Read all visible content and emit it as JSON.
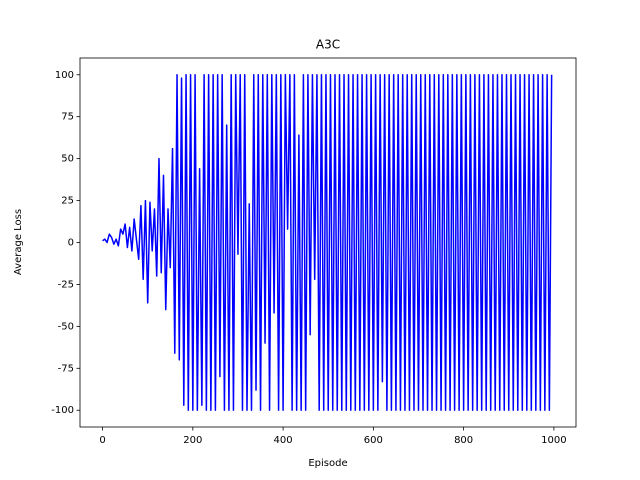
{
  "chart_data": {
    "type": "line",
    "title": "A3C",
    "x_label": "Episode",
    "y_label": "Average Loss",
    "x": [
      0,
      5,
      10,
      15,
      20,
      25,
      30,
      35,
      40,
      45,
      50,
      55,
      60,
      65,
      70,
      75,
      80,
      85,
      90,
      95,
      100,
      105,
      110,
      115,
      120,
      125,
      130,
      135,
      140,
      145,
      150,
      155,
      160,
      165,
      170,
      175,
      180,
      185,
      190,
      195,
      200,
      205,
      210,
      215,
      220,
      225,
      230,
      235,
      240,
      245,
      250,
      255,
      260,
      265,
      270,
      275,
      280,
      285,
      290,
      295,
      300,
      305,
      310,
      315,
      320,
      325,
      330,
      335,
      340,
      345,
      350,
      355,
      360,
      365,
      370,
      375,
      380,
      385,
      390,
      395,
      400,
      405,
      410,
      415,
      420,
      425,
      430,
      435,
      440,
      445,
      450,
      455,
      460,
      465,
      470,
      475,
      480,
      485,
      490,
      495,
      500,
      505,
      510,
      515,
      520,
      525,
      530,
      535,
      540,
      545,
      550,
      555,
      560,
      565,
      570,
      575,
      580,
      585,
      590,
      595,
      600,
      605,
      610,
      615,
      620,
      625,
      630,
      635,
      640,
      645,
      650,
      655,
      660,
      665,
      670,
      675,
      680,
      685,
      690,
      695,
      700,
      705,
      710,
      715,
      720,
      725,
      730,
      735,
      740,
      745,
      750,
      755,
      760,
      765,
      770,
      775,
      780,
      785,
      790,
      795,
      800,
      805,
      810,
      815,
      820,
      825,
      830,
      835,
      840,
      845,
      850,
      855,
      860,
      865,
      870,
      875,
      880,
      885,
      890,
      895,
      900,
      905,
      910,
      915,
      920,
      925,
      930,
      935,
      940,
      945,
      950,
      955,
      960,
      965,
      970,
      975,
      980,
      985,
      990,
      995
    ],
    "series": [
      {
        "name": "loss",
        "color": "#0000ff",
        "values": [
          1,
          2,
          0,
          5,
          3,
          -1,
          2,
          -2,
          8,
          5,
          11,
          -3,
          9,
          -5,
          14,
          2,
          -10,
          22,
          -22,
          25,
          -36,
          24,
          -5,
          20,
          -20,
          50,
          -18,
          40,
          -40,
          20,
          -15,
          56,
          -66,
          100,
          -70,
          98,
          -97,
          100,
          -100,
          100,
          -100,
          100,
          -100,
          44,
          -97,
          100,
          -100,
          100,
          -100,
          100,
          -100,
          100,
          -80,
          100,
          -100,
          70,
          -100,
          100,
          -100,
          100,
          -7,
          100,
          -100,
          100,
          -100,
          23,
          -100,
          100,
          -88,
          100,
          -100,
          100,
          -60,
          100,
          -100,
          100,
          -42,
          100,
          -100,
          100,
          -100,
          100,
          8,
          100,
          -100,
          100,
          -100,
          64,
          -100,
          100,
          -100,
          100,
          -55,
          100,
          -22,
          100,
          -100,
          100,
          -100,
          100,
          -100,
          100,
          -100,
          100,
          -100,
          100,
          -100,
          100,
          -100,
          100,
          -100,
          100,
          -100,
          100,
          -100,
          100,
          -100,
          100,
          -100,
          100,
          -100,
          100,
          -100,
          100,
          -83,
          100,
          -100,
          100,
          -100,
          100,
          -100,
          100,
          -100,
          100,
          -100,
          100,
          -100,
          100,
          -100,
          100,
          -100,
          100,
          -100,
          100,
          -100,
          100,
          -100,
          100,
          -100,
          100,
          -100,
          100,
          -100,
          100,
          -100,
          100,
          -100,
          100,
          -100,
          100,
          -100,
          100,
          -100,
          100,
          -100,
          100,
          -100,
          100,
          -100,
          100,
          -100,
          100,
          -100,
          100,
          -100,
          100,
          -100,
          100,
          -100,
          100,
          -100,
          100,
          -100,
          100,
          -100,
          100,
          -100,
          100,
          -100,
          100,
          -100,
          100,
          -100,
          100,
          -100,
          100,
          -100,
          100,
          -100,
          100
        ]
      }
    ],
    "xlim": [
      -50,
      1049
    ],
    "ylim": [
      -110,
      110
    ],
    "xticks": [
      0,
      200,
      400,
      600,
      800,
      1000
    ],
    "yticks": [
      -100,
      -75,
      -50,
      -25,
      0,
      25,
      50,
      75,
      100
    ]
  }
}
